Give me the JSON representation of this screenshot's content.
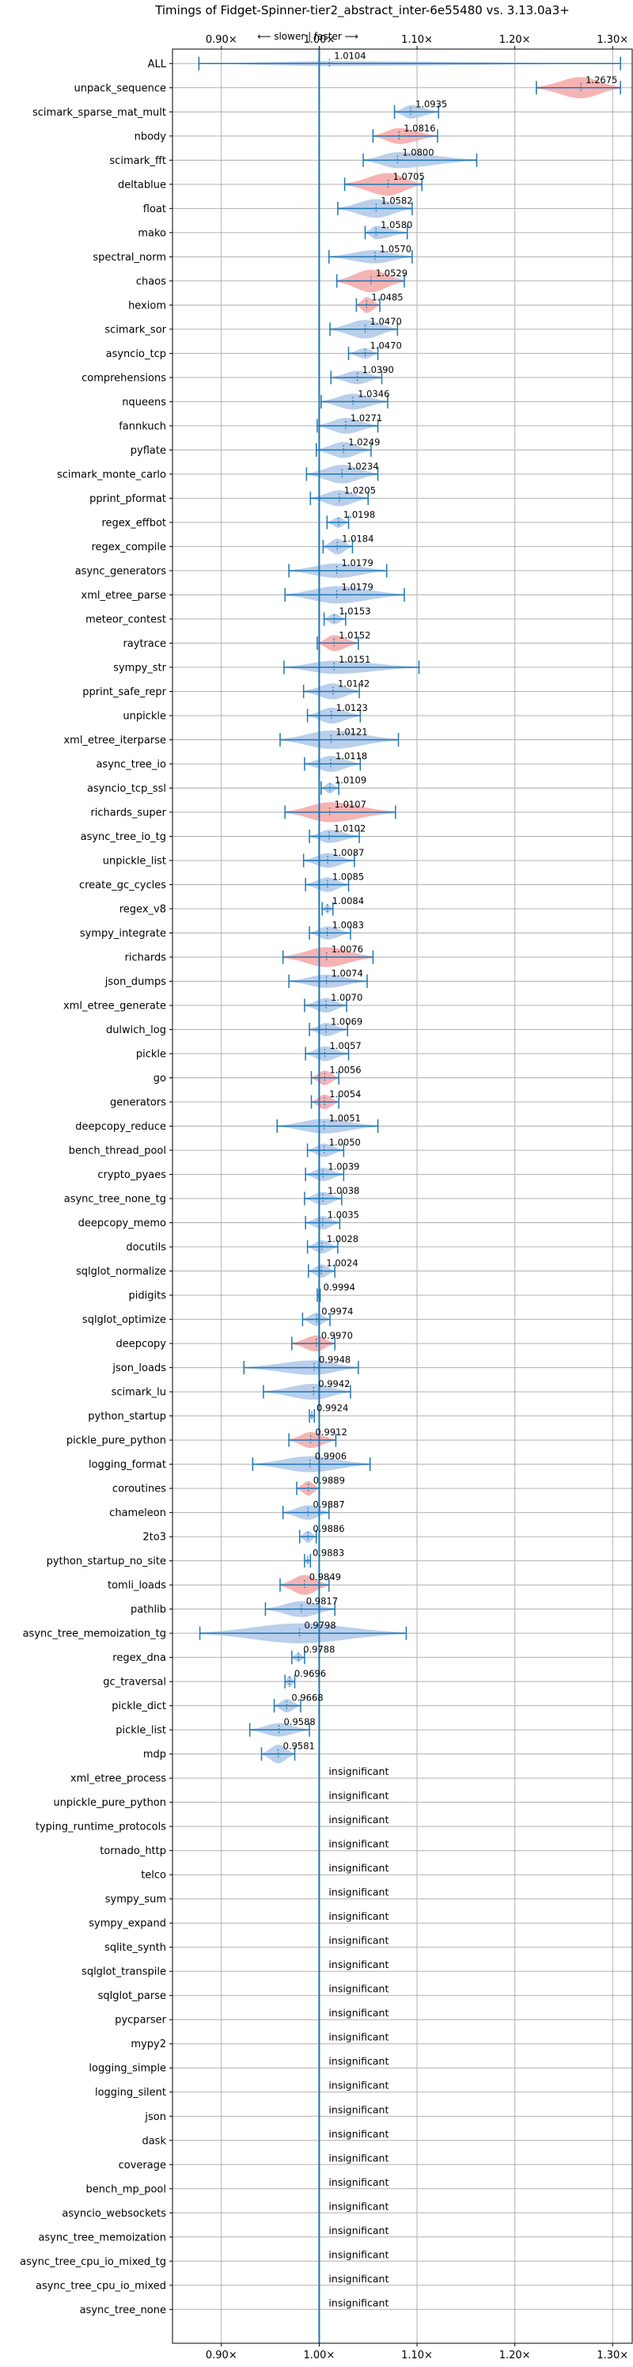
{
  "chart_data": {
    "type": "violin",
    "title": "Timings of Fidget-Spinner-tier2_abstract_inter-6e55480 vs. 3.13.0a3+",
    "direction_label": "⟵ slower | faster ⟶",
    "xlim": [
      0.85,
      1.32
    ],
    "xticks": [
      0.9,
      1.0,
      1.1,
      1.2,
      1.3
    ],
    "xtick_labels": [
      "0.90×",
      "1.00×",
      "1.10×",
      "1.20×",
      "1.30×"
    ],
    "grid": true,
    "colors": {
      "faster": "#aec7e8",
      "slower": "#f4a6a6",
      "axis_line": "#1f77b4"
    },
    "insignificant_label": "insignificant",
    "benchmarks": [
      {
        "name": "ALL",
        "value": 1.0104,
        "min": 0.877,
        "max": 1.308,
        "width": 0.18,
        "color": "blue",
        "label": "1.0104"
      },
      {
        "name": "unpack_sequence",
        "value": 1.2675,
        "min": 1.222,
        "max": 1.308,
        "width": 0.8,
        "color": "red",
        "label": "1.2675"
      },
      {
        "name": "scimark_sparse_mat_mult",
        "value": 1.0935,
        "min": 1.077,
        "max": 1.122,
        "width": 0.5,
        "color": "blue",
        "label": "1.0935"
      },
      {
        "name": "nbody",
        "value": 1.0816,
        "min": 1.055,
        "max": 1.121,
        "width": 0.6,
        "color": "red",
        "label": "1.0816"
      },
      {
        "name": "scimark_fft",
        "value": 1.08,
        "min": 1.045,
        "max": 1.161,
        "width": 0.6,
        "color": "blue",
        "label": "1.0800"
      },
      {
        "name": "deltablue",
        "value": 1.0705,
        "min": 1.026,
        "max": 1.105,
        "width": 0.85,
        "color": "red",
        "label": "1.0705"
      },
      {
        "name": "float",
        "value": 1.0582,
        "min": 1.019,
        "max": 1.095,
        "width": 0.7,
        "color": "blue",
        "label": "1.0582"
      },
      {
        "name": "mako",
        "value": 1.058,
        "min": 1.047,
        "max": 1.09,
        "width": 0.5,
        "color": "blue",
        "label": "1.0580"
      },
      {
        "name": "spectral_norm",
        "value": 1.057,
        "min": 1.01,
        "max": 1.095,
        "width": 0.5,
        "color": "blue",
        "label": "1.0570"
      },
      {
        "name": "chaos",
        "value": 1.0529,
        "min": 1.018,
        "max": 1.087,
        "width": 0.85,
        "color": "red",
        "label": "1.0529"
      },
      {
        "name": "hexiom",
        "value": 1.0485,
        "min": 1.038,
        "max": 1.062,
        "width": 0.6,
        "color": "red",
        "label": "1.0485"
      },
      {
        "name": "scimark_sor",
        "value": 1.047,
        "min": 1.011,
        "max": 1.08,
        "width": 0.7,
        "color": "blue",
        "label": "1.0470"
      },
      {
        "name": "asyncio_tcp",
        "value": 1.047,
        "min": 1.03,
        "max": 1.06,
        "width": 0.4,
        "color": "blue",
        "label": "1.0470"
      },
      {
        "name": "comprehensions",
        "value": 1.039,
        "min": 1.012,
        "max": 1.064,
        "width": 0.5,
        "color": "blue",
        "label": "1.0390"
      },
      {
        "name": "nqueens",
        "value": 1.0346,
        "min": 1.002,
        "max": 1.07,
        "width": 0.6,
        "color": "blue",
        "label": "1.0346"
      },
      {
        "name": "fannkuch",
        "value": 1.0271,
        "min": 0.998,
        "max": 1.06,
        "width": 0.6,
        "color": "blue",
        "label": "1.0271"
      },
      {
        "name": "pyflate",
        "value": 1.0249,
        "min": 0.997,
        "max": 1.053,
        "width": 0.6,
        "color": "blue",
        "label": "1.0249"
      },
      {
        "name": "scimark_monte_carlo",
        "value": 1.0234,
        "min": 0.987,
        "max": 1.06,
        "width": 0.7,
        "color": "blue",
        "label": "1.0234"
      },
      {
        "name": "pprint_pformat",
        "value": 1.0205,
        "min": 0.991,
        "max": 1.05,
        "width": 0.6,
        "color": "blue",
        "label": "1.0205"
      },
      {
        "name": "regex_effbot",
        "value": 1.0198,
        "min": 1.008,
        "max": 1.03,
        "width": 0.4,
        "color": "blue",
        "label": "1.0198"
      },
      {
        "name": "regex_compile",
        "value": 1.0184,
        "min": 1.004,
        "max": 1.034,
        "width": 0.6,
        "color": "blue",
        "label": "1.0184"
      },
      {
        "name": "async_generators",
        "value": 1.0179,
        "min": 0.969,
        "max": 1.069,
        "width": 0.55,
        "color": "blue",
        "label": "1.0179"
      },
      {
        "name": "xml_etree_parse",
        "value": 1.0179,
        "min": 0.965,
        "max": 1.087,
        "width": 0.65,
        "color": "blue",
        "label": "1.0179"
      },
      {
        "name": "meteor_contest",
        "value": 1.0153,
        "min": 1.005,
        "max": 1.027,
        "width": 0.4,
        "color": "blue",
        "label": "1.0153"
      },
      {
        "name": "raytrace",
        "value": 1.0152,
        "min": 0.998,
        "max": 1.04,
        "width": 0.6,
        "color": "red",
        "label": "1.0152"
      },
      {
        "name": "sympy_str",
        "value": 1.0151,
        "min": 0.964,
        "max": 1.102,
        "width": 0.5,
        "color": "blue",
        "label": "1.0151"
      },
      {
        "name": "pprint_safe_repr",
        "value": 1.0142,
        "min": 0.984,
        "max": 1.041,
        "width": 0.6,
        "color": "blue",
        "label": "1.0142"
      },
      {
        "name": "unpickle",
        "value": 1.0123,
        "min": 0.988,
        "max": 1.042,
        "width": 0.6,
        "color": "blue",
        "label": "1.0123"
      },
      {
        "name": "xml_etree_iterparse",
        "value": 1.0121,
        "min": 0.96,
        "max": 1.081,
        "width": 0.7,
        "color": "blue",
        "label": "1.0121"
      },
      {
        "name": "async_tree_io",
        "value": 1.0118,
        "min": 0.985,
        "max": 1.042,
        "width": 0.6,
        "color": "blue",
        "label": "1.0118"
      },
      {
        "name": "asyncio_tcp_ssl",
        "value": 1.0109,
        "min": 1.002,
        "max": 1.02,
        "width": 0.4,
        "color": "blue",
        "label": "1.0109"
      },
      {
        "name": "richards_super",
        "value": 1.0107,
        "min": 0.965,
        "max": 1.078,
        "width": 0.75,
        "color": "red",
        "label": "1.0107"
      },
      {
        "name": "async_tree_io_tg",
        "value": 1.0102,
        "min": 0.99,
        "max": 1.041,
        "width": 0.5,
        "color": "blue",
        "label": "1.0102"
      },
      {
        "name": "unpickle_list",
        "value": 1.0087,
        "min": 0.984,
        "max": 1.036,
        "width": 0.55,
        "color": "blue",
        "label": "1.0087"
      },
      {
        "name": "create_gc_cycles",
        "value": 1.0085,
        "min": 0.986,
        "max": 1.03,
        "width": 0.55,
        "color": "blue",
        "label": "1.0085"
      },
      {
        "name": "regex_v8",
        "value": 1.0084,
        "min": 1.003,
        "max": 1.014,
        "width": 0.35,
        "color": "blue",
        "label": "1.0084"
      },
      {
        "name": "sympy_integrate",
        "value": 1.0083,
        "min": 0.99,
        "max": 1.032,
        "width": 0.5,
        "color": "blue",
        "label": "1.0083"
      },
      {
        "name": "richards",
        "value": 1.0076,
        "min": 0.963,
        "max": 1.055,
        "width": 0.75,
        "color": "red",
        "label": "1.0076"
      },
      {
        "name": "json_dumps",
        "value": 1.0074,
        "min": 0.969,
        "max": 1.049,
        "width": 0.5,
        "color": "blue",
        "label": "1.0074"
      },
      {
        "name": "xml_etree_generate",
        "value": 1.007,
        "min": 0.985,
        "max": 1.028,
        "width": 0.55,
        "color": "blue",
        "label": "1.0070"
      },
      {
        "name": "dulwich_log",
        "value": 1.0069,
        "min": 0.99,
        "max": 1.029,
        "width": 0.5,
        "color": "blue",
        "label": "1.0069"
      },
      {
        "name": "pickle",
        "value": 1.0057,
        "min": 0.986,
        "max": 1.03,
        "width": 0.55,
        "color": "blue",
        "label": "1.0057"
      },
      {
        "name": "go",
        "value": 1.0056,
        "min": 0.992,
        "max": 1.02,
        "width": 0.55,
        "color": "red",
        "label": "1.0056"
      },
      {
        "name": "generators",
        "value": 1.0054,
        "min": 0.992,
        "max": 1.02,
        "width": 0.55,
        "color": "red",
        "label": "1.0054"
      },
      {
        "name": "deepcopy_reduce",
        "value": 1.0051,
        "min": 0.957,
        "max": 1.06,
        "width": 0.55,
        "color": "blue",
        "label": "1.0051"
      },
      {
        "name": "bench_thread_pool",
        "value": 1.005,
        "min": 0.988,
        "max": 1.025,
        "width": 0.5,
        "color": "blue",
        "label": "1.0050"
      },
      {
        "name": "crypto_pyaes",
        "value": 1.0039,
        "min": 0.986,
        "max": 1.025,
        "width": 0.5,
        "color": "blue",
        "label": "1.0039"
      },
      {
        "name": "async_tree_none_tg",
        "value": 1.0038,
        "min": 0.985,
        "max": 1.023,
        "width": 0.5,
        "color": "blue",
        "label": "1.0038"
      },
      {
        "name": "deepcopy_memo",
        "value": 1.0035,
        "min": 0.986,
        "max": 1.021,
        "width": 0.5,
        "color": "blue",
        "label": "1.0035"
      },
      {
        "name": "docutils",
        "value": 1.0028,
        "min": 0.988,
        "max": 1.019,
        "width": 0.5,
        "color": "blue",
        "label": "1.0028"
      },
      {
        "name": "sqlglot_normalize",
        "value": 1.0024,
        "min": 0.989,
        "max": 1.016,
        "width": 0.5,
        "color": "blue",
        "label": "1.0024"
      },
      {
        "name": "pidigits",
        "value": 0.9994,
        "min": 0.998,
        "max": 1.001,
        "width": 0.2,
        "color": "blue",
        "label": "0.9994"
      },
      {
        "name": "sqlglot_optimize",
        "value": 0.9974,
        "min": 0.983,
        "max": 1.011,
        "width": 0.5,
        "color": "blue",
        "label": "0.9974"
      },
      {
        "name": "deepcopy",
        "value": 0.997,
        "min": 0.972,
        "max": 1.016,
        "width": 0.6,
        "color": "red",
        "label": "0.9970"
      },
      {
        "name": "json_loads",
        "value": 0.9948,
        "min": 0.923,
        "max": 1.04,
        "width": 0.55,
        "color": "blue",
        "label": "0.9948"
      },
      {
        "name": "scimark_lu",
        "value": 0.9942,
        "min": 0.943,
        "max": 1.032,
        "width": 0.6,
        "color": "blue",
        "label": "0.9942"
      },
      {
        "name": "python_startup",
        "value": 0.9924,
        "min": 0.99,
        "max": 0.995,
        "width": 0.25,
        "color": "blue",
        "label": "0.9924"
      },
      {
        "name": "pickle_pure_python",
        "value": 0.9912,
        "min": 0.969,
        "max": 1.017,
        "width": 0.6,
        "color": "red",
        "label": "0.9912"
      },
      {
        "name": "logging_format",
        "value": 0.9906,
        "min": 0.932,
        "max": 1.052,
        "width": 0.6,
        "color": "blue",
        "label": "0.9906"
      },
      {
        "name": "coroutines",
        "value": 0.9889,
        "min": 0.977,
        "max": 1.0,
        "width": 0.55,
        "color": "red",
        "label": "0.9889"
      },
      {
        "name": "chameleon",
        "value": 0.9887,
        "min": 0.963,
        "max": 1.01,
        "width": 0.55,
        "color": "blue",
        "label": "0.9887"
      },
      {
        "name": "2to3",
        "value": 0.9886,
        "min": 0.98,
        "max": 0.997,
        "width": 0.45,
        "color": "blue",
        "label": "0.9886"
      },
      {
        "name": "python_startup_no_site",
        "value": 0.9883,
        "min": 0.985,
        "max": 0.991,
        "width": 0.25,
        "color": "blue",
        "label": "0.9883"
      },
      {
        "name": "tomli_loads",
        "value": 0.9849,
        "min": 0.96,
        "max": 1.01,
        "width": 0.75,
        "color": "red",
        "label": "0.9849"
      },
      {
        "name": "pathlib",
        "value": 0.9817,
        "min": 0.945,
        "max": 1.016,
        "width": 0.6,
        "color": "blue",
        "label": "0.9817"
      },
      {
        "name": "async_tree_memoization_tg",
        "value": 0.9798,
        "min": 0.878,
        "max": 1.089,
        "width": 0.75,
        "color": "blue",
        "label": "0.9798"
      },
      {
        "name": "regex_dna",
        "value": 0.9788,
        "min": 0.972,
        "max": 0.985,
        "width": 0.35,
        "color": "blue",
        "label": "0.9788"
      },
      {
        "name": "gc_traversal",
        "value": 0.9696,
        "min": 0.965,
        "max": 0.975,
        "width": 0.45,
        "color": "blue",
        "label": "0.9696"
      },
      {
        "name": "pickle_dict",
        "value": 0.9668,
        "min": 0.954,
        "max": 0.981,
        "width": 0.5,
        "color": "blue",
        "label": "0.9668"
      },
      {
        "name": "pickle_list",
        "value": 0.9588,
        "min": 0.929,
        "max": 0.99,
        "width": 0.5,
        "color": "blue",
        "label": "0.9588"
      },
      {
        "name": "mdp",
        "value": 0.9581,
        "min": 0.941,
        "max": 0.975,
        "width": 0.7,
        "color": "blue",
        "label": "0.9581"
      },
      {
        "name": "xml_etree_process",
        "insignificant": true
      },
      {
        "name": "unpickle_pure_python",
        "insignificant": true
      },
      {
        "name": "typing_runtime_protocols",
        "insignificant": true
      },
      {
        "name": "tornado_http",
        "insignificant": true
      },
      {
        "name": "telco",
        "insignificant": true
      },
      {
        "name": "sympy_sum",
        "insignificant": true
      },
      {
        "name": "sympy_expand",
        "insignificant": true
      },
      {
        "name": "sqlite_synth",
        "insignificant": true
      },
      {
        "name": "sqlglot_transpile",
        "insignificant": true
      },
      {
        "name": "sqlglot_parse",
        "insignificant": true
      },
      {
        "name": "pycparser",
        "insignificant": true
      },
      {
        "name": "mypy2",
        "insignificant": true
      },
      {
        "name": "logging_simple",
        "insignificant": true
      },
      {
        "name": "logging_silent",
        "insignificant": true
      },
      {
        "name": "json",
        "insignificant": true
      },
      {
        "name": "dask",
        "insignificant": true
      },
      {
        "name": "coverage",
        "insignificant": true
      },
      {
        "name": "bench_mp_pool",
        "insignificant": true
      },
      {
        "name": "asyncio_websockets",
        "insignificant": true
      },
      {
        "name": "async_tree_memoization",
        "insignificant": true
      },
      {
        "name": "async_tree_cpu_io_mixed_tg",
        "insignificant": true
      },
      {
        "name": "async_tree_cpu_io_mixed",
        "insignificant": true
      },
      {
        "name": "async_tree_none",
        "insignificant": true
      }
    ]
  }
}
